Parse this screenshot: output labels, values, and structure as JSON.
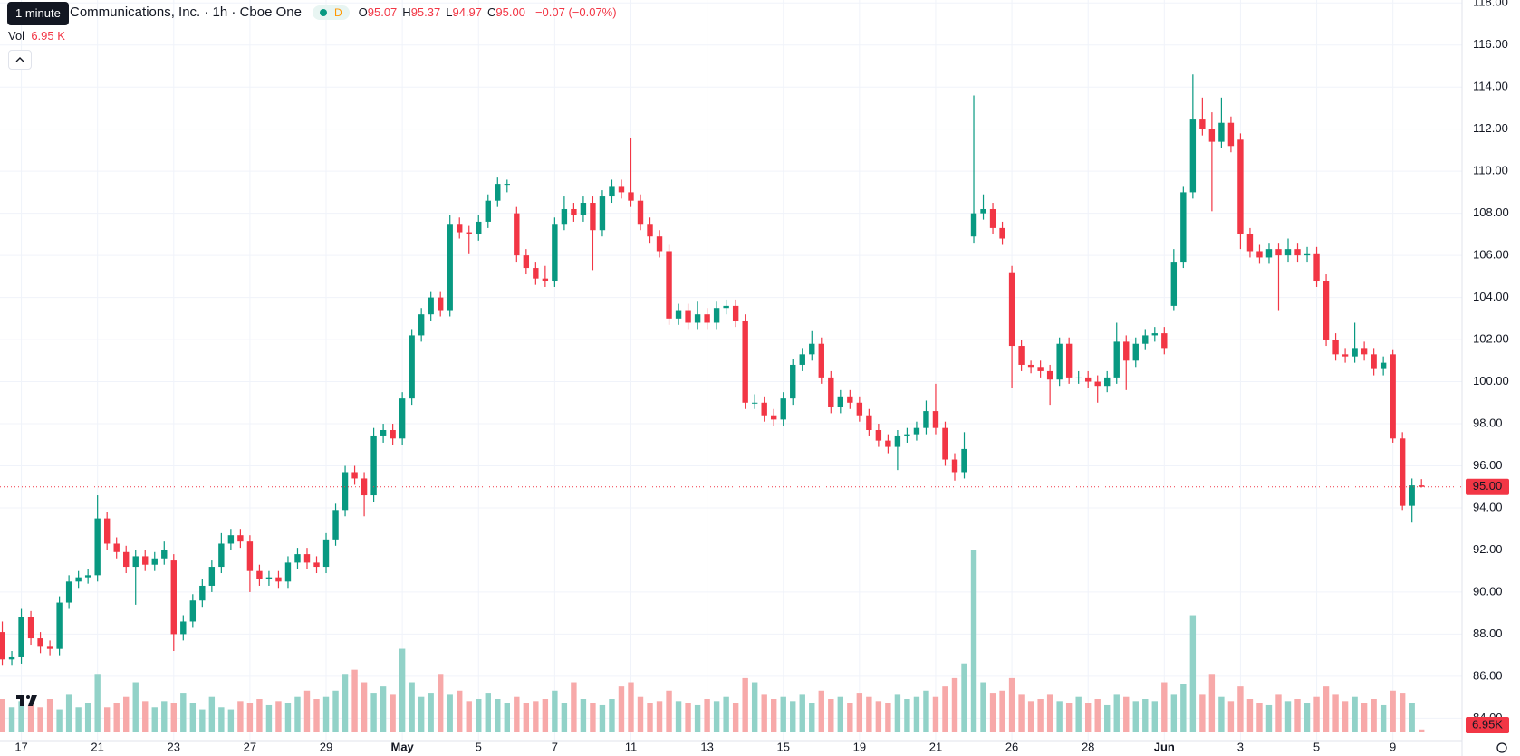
{
  "chart_data": {
    "type": "candlestick",
    "tooltip": "1 minute",
    "title": "Communications, Inc. · 1h · Cboe One",
    "badge": "D",
    "legend": [
      {
        "key": "O",
        "value": "95.07"
      },
      {
        "key": "H",
        "value": "95.37"
      },
      {
        "key": "L",
        "value": "94.97"
      },
      {
        "key": "C",
        "value": "95.00"
      }
    ],
    "change": "−0.07 (−0.07%)",
    "volume_title": "Vol",
    "volume_value": "6.95 K",
    "last_price_label": "95.00",
    "volume_value_label": "6.95K",
    "up_color": "#089981",
    "down_color": "#f23645",
    "up_volume_color": "#92d2c8",
    "down_volume_color": "#f7a9a9",
    "grid": true,
    "categories": [
      null,
      null,
      "17",
      null,
      null,
      null,
      null,
      null,
      null,
      null,
      "21",
      null,
      null,
      null,
      null,
      null,
      null,
      null,
      "23",
      null,
      null,
      null,
      null,
      null,
      null,
      null,
      "27",
      null,
      null,
      null,
      null,
      null,
      null,
      null,
      "29",
      null,
      null,
      null,
      null,
      null,
      null,
      null,
      "May",
      null,
      null,
      null,
      null,
      null,
      null,
      null,
      "5",
      null,
      null,
      null,
      null,
      null,
      null,
      null,
      "7",
      null,
      null,
      null,
      null,
      null,
      null,
      null,
      "11",
      null,
      null,
      null,
      null,
      null,
      null,
      null,
      "13",
      null,
      null,
      null,
      null,
      null,
      null,
      null,
      "15",
      null,
      null,
      null,
      null,
      null,
      null,
      null,
      "19",
      null,
      null,
      null,
      null,
      null,
      null,
      null,
      "21",
      null,
      null,
      null,
      null,
      null,
      null,
      null,
      "26",
      null,
      null,
      null,
      null,
      null,
      null,
      null,
      "28",
      null,
      null,
      null,
      null,
      null,
      null,
      null,
      "Jun",
      null,
      null,
      null,
      null,
      null,
      null,
      null,
      "3",
      null,
      null,
      null,
      null,
      null,
      null,
      null,
      "5",
      null,
      null,
      null,
      null,
      null,
      null,
      null,
      "9",
      null,
      null,
      null
    ],
    "open": [
      88.1,
      86.8,
      86.9,
      88.8,
      87.8,
      87.4,
      87.3,
      89.5,
      90.5,
      90.7,
      90.8,
      93.5,
      92.3,
      91.9,
      91.2,
      91.7,
      91.3,
      91.6,
      91.5,
      88.0,
      88.6,
      89.6,
      90.3,
      91.2,
      92.3,
      92.7,
      92.4,
      91.0,
      90.6,
      90.7,
      90.5,
      91.4,
      91.8,
      91.4,
      91.2,
      92.5,
      93.9,
      95.7,
      95.4,
      94.6,
      97.4,
      97.7,
      97.3,
      99.2,
      102.2,
      103.2,
      104.0,
      103.4,
      107.5,
      107.1,
      107.0,
      107.6,
      108.6,
      109.4,
      108.0,
      106.0,
      105.4,
      104.9,
      104.8,
      107.5,
      108.2,
      107.9,
      108.5,
      107.2,
      108.8,
      109.3,
      109.0,
      108.6,
      107.5,
      106.9,
      106.2,
      103.0,
      103.4,
      102.8,
      103.2,
      102.8,
      103.5,
      103.6,
      102.9,
      99.0,
      99.0,
      98.4,
      98.2,
      99.2,
      100.8,
      101.3,
      101.8,
      100.2,
      98.8,
      99.3,
      99.0,
      98.4,
      97.7,
      97.2,
      96.9,
      97.4,
      97.5,
      97.8,
      98.6,
      97.8,
      96.3,
      95.7,
      106.9,
      108.0,
      108.2,
      107.3,
      105.2,
      101.7,
      100.8,
      100.7,
      100.5,
      100.1,
      101.8,
      100.2,
      100.2,
      100.0,
      99.8,
      100.2,
      101.9,
      101.0,
      101.8,
      102.2,
      102.3,
      103.6,
      105.7,
      109.0,
      112.5,
      112.0,
      111.4,
      112.3,
      111.5,
      107.0,
      106.2,
      105.9,
      106.3,
      106.0,
      106.3,
      106.0,
      106.1,
      104.8,
      102.0,
      101.3,
      101.2,
      101.6,
      101.3,
      100.6,
      101.3,
      97.3,
      94.1,
      95.07
    ],
    "high": [
      88.6,
      87.2,
      89.2,
      89.1,
      88.1,
      87.7,
      89.8,
      90.8,
      91.0,
      91.1,
      94.6,
      93.8,
      92.6,
      92.2,
      92.0,
      92.0,
      91.9,
      92.4,
      91.8,
      88.9,
      89.9,
      90.6,
      91.5,
      92.8,
      93.0,
      93.0,
      92.7,
      91.3,
      91.0,
      91.0,
      91.7,
      92.1,
      92.1,
      91.7,
      92.8,
      94.2,
      96.0,
      96.0,
      95.7,
      97.8,
      98.0,
      98.0,
      99.5,
      102.5,
      103.5,
      104.3,
      104.3,
      107.9,
      107.8,
      107.4,
      107.9,
      108.9,
      109.7,
      109.6,
      108.3,
      106.3,
      105.7,
      105.5,
      107.8,
      108.8,
      108.5,
      108.8,
      108.8,
      109.1,
      109.6,
      109.6,
      111.6,
      108.9,
      107.8,
      107.2,
      106.5,
      103.7,
      103.7,
      103.8,
      103.5,
      103.8,
      103.9,
      103.9,
      103.2,
      99.4,
      99.3,
      98.7,
      99.5,
      101.1,
      101.6,
      102.4,
      102.1,
      100.5,
      99.6,
      99.6,
      99.3,
      98.7,
      98.0,
      97.5,
      97.7,
      97.8,
      98.1,
      99.1,
      99.9,
      98.1,
      96.6,
      97.6,
      113.6,
      108.9,
      108.5,
      107.6,
      105.5,
      102.0,
      101.0,
      101.0,
      100.8,
      102.1,
      102.1,
      100.5,
      100.5,
      100.3,
      100.5,
      102.8,
      102.2,
      102.1,
      102.5,
      102.6,
      102.6,
      106.3,
      109.3,
      114.6,
      113.5,
      112.8,
      113.5,
      112.6,
      111.8,
      107.3,
      106.5,
      106.6,
      106.6,
      106.8,
      106.6,
      106.4,
      106.4,
      105.1,
      102.3,
      101.6,
      102.8,
      101.9,
      101.6,
      101.2,
      101.5,
      97.6,
      95.4,
      95.37
    ],
    "low": [
      86.5,
      86.5,
      86.6,
      87.5,
      87.1,
      87.0,
      87.0,
      89.2,
      90.2,
      90.4,
      90.5,
      92.0,
      91.6,
      90.9,
      89.4,
      91.0,
      91.0,
      91.3,
      87.2,
      87.7,
      88.3,
      89.3,
      90.0,
      90.9,
      92.0,
      92.1,
      90.0,
      90.3,
      90.3,
      90.2,
      90.2,
      91.1,
      91.1,
      90.9,
      90.9,
      92.2,
      93.6,
      95.1,
      93.6,
      94.3,
      97.1,
      97.0,
      97.0,
      98.9,
      101.9,
      102.9,
      103.1,
      103.1,
      106.8,
      106.1,
      106.7,
      107.3,
      108.3,
      109.0,
      105.7,
      105.1,
      104.6,
      104.5,
      104.5,
      107.2,
      107.6,
      107.6,
      105.3,
      106.9,
      108.5,
      108.7,
      108.3,
      107.2,
      106.6,
      105.9,
      102.7,
      102.7,
      102.5,
      102.5,
      102.5,
      102.5,
      103.2,
      102.6,
      98.7,
      98.7,
      98.1,
      97.9,
      97.9,
      98.9,
      100.5,
      101.0,
      99.9,
      98.5,
      98.5,
      98.7,
      98.1,
      97.4,
      96.9,
      96.6,
      95.8,
      97.1,
      97.2,
      97.5,
      97.5,
      96.0,
      95.3,
      95.4,
      106.6,
      107.7,
      107.0,
      106.5,
      99.7,
      100.5,
      100.4,
      100.2,
      98.9,
      99.8,
      99.9,
      99.9,
      99.7,
      99.0,
      99.5,
      99.9,
      99.6,
      100.7,
      101.5,
      101.9,
      101.3,
      103.4,
      105.4,
      108.7,
      111.7,
      108.1,
      111.1,
      110.9,
      106.3,
      105.9,
      105.6,
      105.6,
      103.4,
      105.7,
      105.7,
      105.7,
      104.5,
      101.7,
      101.0,
      100.9,
      100.9,
      101.0,
      100.3,
      100.3,
      97.1,
      93.9,
      93.3,
      94.97
    ],
    "close": [
      86.8,
      86.9,
      88.8,
      87.8,
      87.4,
      87.3,
      89.5,
      90.5,
      90.7,
      90.8,
      93.5,
      92.3,
      91.9,
      91.2,
      91.7,
      91.3,
      91.6,
      92.0,
      88.0,
      88.6,
      89.6,
      90.3,
      91.2,
      92.3,
      92.7,
      92.4,
      91.0,
      90.6,
      90.7,
      90.5,
      91.4,
      91.8,
      91.4,
      91.2,
      92.5,
      93.9,
      95.7,
      95.4,
      94.6,
      97.4,
      97.7,
      97.3,
      99.2,
      102.2,
      103.2,
      104.0,
      103.4,
      107.5,
      107.1,
      107.0,
      107.6,
      108.6,
      109.4,
      109.4,
      106.0,
      105.4,
      104.9,
      104.8,
      107.5,
      108.2,
      107.9,
      108.5,
      107.2,
      108.8,
      109.3,
      109.0,
      108.6,
      107.5,
      106.9,
      106.2,
      103.0,
      103.4,
      102.8,
      103.2,
      102.8,
      103.5,
      103.6,
      102.9,
      99.0,
      99.0,
      98.4,
      98.2,
      99.2,
      100.8,
      101.3,
      101.8,
      100.2,
      98.8,
      99.3,
      99.0,
      98.4,
      97.7,
      97.2,
      96.9,
      97.4,
      97.5,
      97.8,
      98.6,
      97.8,
      96.3,
      95.7,
      96.8,
      108.0,
      108.2,
      107.3,
      106.8,
      101.7,
      100.8,
      100.7,
      100.5,
      100.1,
      101.8,
      100.2,
      100.2,
      100.0,
      99.8,
      100.2,
      101.9,
      101.0,
      101.8,
      102.2,
      102.3,
      101.6,
      105.7,
      109.0,
      112.5,
      112.0,
      111.4,
      112.3,
      111.2,
      107.0,
      106.2,
      105.9,
      106.3,
      106.0,
      106.3,
      106.0,
      106.1,
      104.8,
      102.0,
      101.3,
      101.2,
      101.6,
      101.3,
      100.6,
      100.9,
      97.3,
      94.1,
      95.07,
      95
    ],
    "volume": [
      80,
      60,
      75,
      65,
      60,
      80,
      55,
      90,
      60,
      70,
      140,
      60,
      70,
      85,
      120,
      75,
      60,
      75,
      70,
      95,
      70,
      55,
      85,
      60,
      55,
      75,
      70,
      80,
      65,
      75,
      70,
      85,
      100,
      80,
      85,
      100,
      140,
      150,
      120,
      95,
      110,
      90,
      200,
      120,
      85,
      95,
      140,
      90,
      100,
      75,
      80,
      95,
      80,
      70,
      85,
      70,
      75,
      80,
      100,
      70,
      120,
      80,
      70,
      65,
      80,
      110,
      120,
      85,
      70,
      75,
      100,
      75,
      70,
      65,
      80,
      75,
      85,
      70,
      130,
      120,
      90,
      80,
      85,
      75,
      90,
      70,
      100,
      80,
      85,
      70,
      95,
      85,
      75,
      70,
      90,
      80,
      85,
      100,
      85,
      110,
      130,
      165,
      435,
      120,
      95,
      100,
      130,
      90,
      75,
      80,
      90,
      75,
      70,
      85,
      70,
      80,
      65,
      90,
      85,
      75,
      80,
      75,
      120,
      90,
      115,
      280,
      90,
      140,
      85,
      75,
      110,
      80,
      70,
      65,
      90,
      75,
      80,
      70,
      85,
      110,
      90,
      75,
      85,
      70,
      80,
      65,
      100,
      95,
      70,
      6.95
    ],
    "xlim": [
      -0.24,
      153.26
    ],
    "ylim": [
      82.94,
      118.14
    ],
    "volume_lim": [
      0,
      1750
    ],
    "yticks": [
      {
        "value": 84,
        "label": "84.00"
      },
      {
        "value": 86,
        "label": "86.00"
      },
      {
        "value": 88,
        "label": "88.00"
      },
      {
        "value": 90,
        "label": "90.00"
      },
      {
        "value": 92,
        "label": "92.00"
      },
      {
        "value": 94,
        "label": "94.00"
      },
      {
        "value": 96,
        "label": "96.00"
      },
      {
        "value": 98,
        "label": "98.00"
      },
      {
        "value": 100,
        "label": "100.00"
      },
      {
        "value": 102,
        "label": "102.00"
      },
      {
        "value": 104,
        "label": "104.00"
      },
      {
        "value": 106,
        "label": "106.00"
      },
      {
        "value": 108,
        "label": "108.00"
      },
      {
        "value": 110,
        "label": "110.00"
      },
      {
        "value": 112,
        "label": "112.00"
      },
      {
        "value": 114,
        "label": "114.00"
      },
      {
        "value": 116,
        "label": "116.00"
      },
      {
        "value": 118,
        "label": "118.00"
      }
    ]
  }
}
